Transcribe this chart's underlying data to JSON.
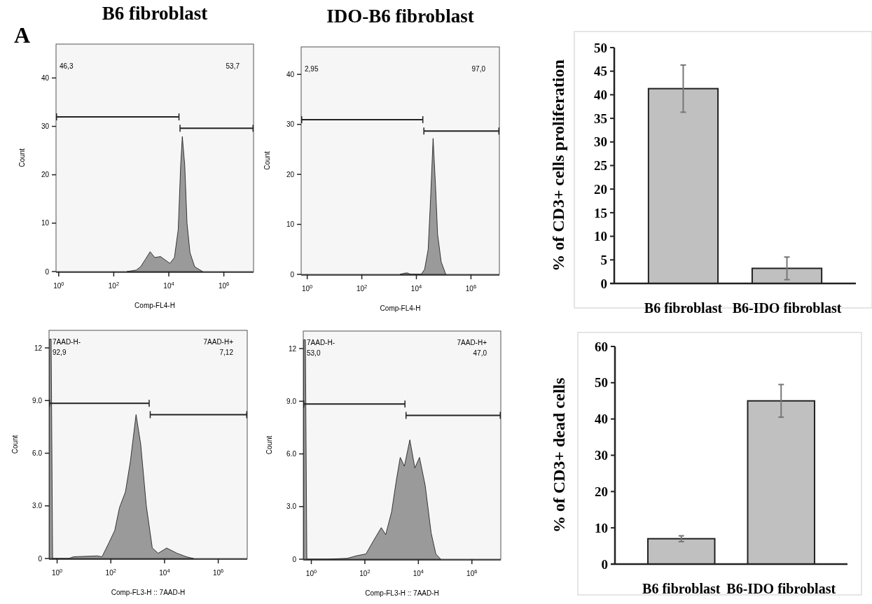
{
  "chart_data": [
    {
      "type": "area",
      "title": "B6 fibroblast",
      "xlabel": "Comp-FL4-H",
      "ylabel": "Count",
      "log": "x",
      "color": "#a0a0a0",
      "x": [
        300,
        650,
        950,
        1400,
        2100,
        3100,
        5000,
        7400,
        11000,
        16000,
        22000,
        27000,
        31000,
        38000,
        46000,
        59000,
        87000,
        170000
      ],
      "values": [
        0,
        0.3,
        1,
        2.5,
        4.1,
        2.9,
        3.1,
        2.4,
        1.7,
        2.9,
        8.7,
        22,
        27.9,
        22,
        10,
        3.9,
        1,
        0
      ],
      "xlim": [
        0.8,
        12000000
      ],
      "ylim": [
        0,
        47
      ],
      "xticks": [
        {
          "value": 1,
          "label": "10$^{0}$"
        },
        {
          "value": 100,
          "label": "10$^{2}$"
        },
        {
          "value": 10000,
          "label": "10$^{4}$"
        },
        {
          "value": 1000000,
          "label": "10$^{6}$"
        }
      ],
      "yticks": [
        0,
        10,
        20,
        30,
        40
      ],
      "bands": [
        {
          "axis": "x",
          "from": 0.8,
          "to": 24500
        },
        {
          "axis": "x",
          "from": 24500,
          "to": 12000000
        }
      ],
      "annotations": [
        "46,3",
        "53,7",
        "A"
      ]
    },
    {
      "type": "area",
      "title": "IDO-B6 fibroblast",
      "xlabel": "Comp-FL4-H",
      "ylabel": "Count",
      "log": "x",
      "color": "#a0a0a0",
      "x": [
        2500,
        3500,
        4500,
        6300,
        15000,
        20000,
        27000,
        33000,
        41000,
        50000,
        60000,
        81000,
        120000
      ],
      "values": [
        0,
        0.2,
        0.3,
        0,
        0,
        1,
        5,
        15,
        27.2,
        18,
        8,
        2.5,
        0
      ],
      "xlim": [
        0.6,
        11000000
      ],
      "ylim": [
        0,
        45.5
      ],
      "xticks": [
        {
          "value": 1,
          "label": "10$^{0}$"
        },
        {
          "value": 100,
          "label": "10$^{2}$"
        },
        {
          "value": 10000,
          "label": "10$^{4}$"
        },
        {
          "value": 1000000,
          "label": "10$^{6}$"
        }
      ],
      "yticks": [
        0,
        10,
        20,
        30,
        40
      ],
      "bands": [
        {
          "axis": "x",
          "from": 0.6,
          "to": 18000
        },
        {
          "axis": "x",
          "from": 18000,
          "to": 11000000
        }
      ],
      "annotations": [
        "2,95",
        "97,0"
      ]
    },
    {
      "type": "bar",
      "ylabel": "% of CD3+ cells proliferation",
      "categories": [
        "B6 fibroblast",
        "B6-IDO fibroblast"
      ],
      "values": [
        41.3,
        3.2
      ],
      "errors": [
        5,
        2.4
      ],
      "color": "#c0c0c0",
      "ylim": [
        0,
        50
      ],
      "yticks": [
        0,
        5,
        10,
        15,
        20,
        25,
        30,
        35,
        40,
        45,
        50
      ]
    },
    {
      "type": "area",
      "xlabel": "Comp-FL3-H :: 7AAD-H",
      "ylabel": "Count",
      "log": "x",
      "color": "#a0a0a0",
      "x": [
        0.52,
        0.6,
        0.68,
        2.7,
        4.1,
        31,
        47,
        85,
        140,
        210,
        350,
        530,
        870,
        1300,
        2100,
        3500,
        5800,
        12000,
        29000,
        65000,
        120000
      ],
      "values": [
        12.5,
        12.5,
        0,
        0,
        0.1,
        0.15,
        0.1,
        0.9,
        1.6,
        2.9,
        3.8,
        5.5,
        8.2,
        6.5,
        3,
        0.6,
        0.3,
        0.6,
        0.3,
        0.1,
        0
      ],
      "xlim": [
        0.5,
        12000000
      ],
      "ylim": [
        0,
        13
      ],
      "xticks": [
        {
          "value": 1,
          "label": "10$^{0}$"
        },
        {
          "value": 100,
          "label": "10$^{2}$"
        },
        {
          "value": 10000,
          "label": "10$^{4}$"
        },
        {
          "value": 1000000,
          "label": "10$^{6}$"
        }
      ],
      "yticks": [
        0,
        {
          "value": 3,
          "label": "3.0"
        },
        {
          "value": 6,
          "label": "6.0"
        },
        {
          "value": 9,
          "label": "9.0"
        },
        12
      ],
      "bands": [
        {
          "axis": "x",
          "from": 0.5,
          "to": 2800,
          "label": "7AAD-H-"
        },
        {
          "axis": "x",
          "from": 2800,
          "to": 12000000,
          "label": "7AAD-H+"
        }
      ],
      "annotations": [
        "92,9",
        "7,12"
      ]
    },
    {
      "type": "area",
      "xlabel": "Comp-FL3-H :: 7AAD-H",
      "ylabel": "Count",
      "log": "x",
      "color": "#a0a0a0",
      "x": [
        0.52,
        0.6,
        0.68,
        3.7,
        22,
        50,
        110,
        200,
        410,
        600,
        1000,
        1500,
        2100,
        3000,
        4800,
        7400,
        11000,
        18000,
        30000,
        45000,
        68000
      ],
      "values": [
        12.5,
        12.5,
        0,
        0,
        0.05,
        0.2,
        0.3,
        1,
        1.8,
        1.4,
        2.7,
        4.5,
        5.8,
        5.3,
        6.8,
        5.2,
        5.8,
        4.2,
        1.5,
        0.3,
        0
      ],
      "xlim": [
        0.5,
        12000000
      ],
      "ylim": [
        0,
        13
      ],
      "xticks": [
        {
          "value": 1,
          "label": "10$^{0}$"
        },
        {
          "value": 100,
          "label": "10$^{2}$"
        },
        {
          "value": 10000,
          "label": "10$^{4}$"
        },
        {
          "value": 1000000,
          "label": "10$^{6}$"
        }
      ],
      "yticks": [
        0,
        {
          "value": 3,
          "label": "3.0"
        },
        {
          "value": 6,
          "label": "6.0"
        },
        {
          "value": 9,
          "label": "9.0"
        },
        12
      ],
      "bands": [
        {
          "axis": "x",
          "from": 0.5,
          "to": 3300,
          "label": "7AAD-H-"
        },
        {
          "axis": "x",
          "from": 3300,
          "to": 12000000,
          "label": "7AAD-H+"
        }
      ],
      "annotations": [
        "53,0",
        "47,0"
      ]
    },
    {
      "type": "bar",
      "ylabel": "% of CD3+ dead cells",
      "categories": [
        "B6 fibroblast",
        "B6-IDO fibroblast"
      ],
      "values": [
        7,
        45
      ],
      "errors": [
        0.8,
        4.5
      ],
      "color": "#c0c0c0",
      "ylim": [
        0,
        60
      ],
      "yticks": [
        0,
        10,
        20,
        30,
        40,
        50,
        60
      ]
    }
  ]
}
